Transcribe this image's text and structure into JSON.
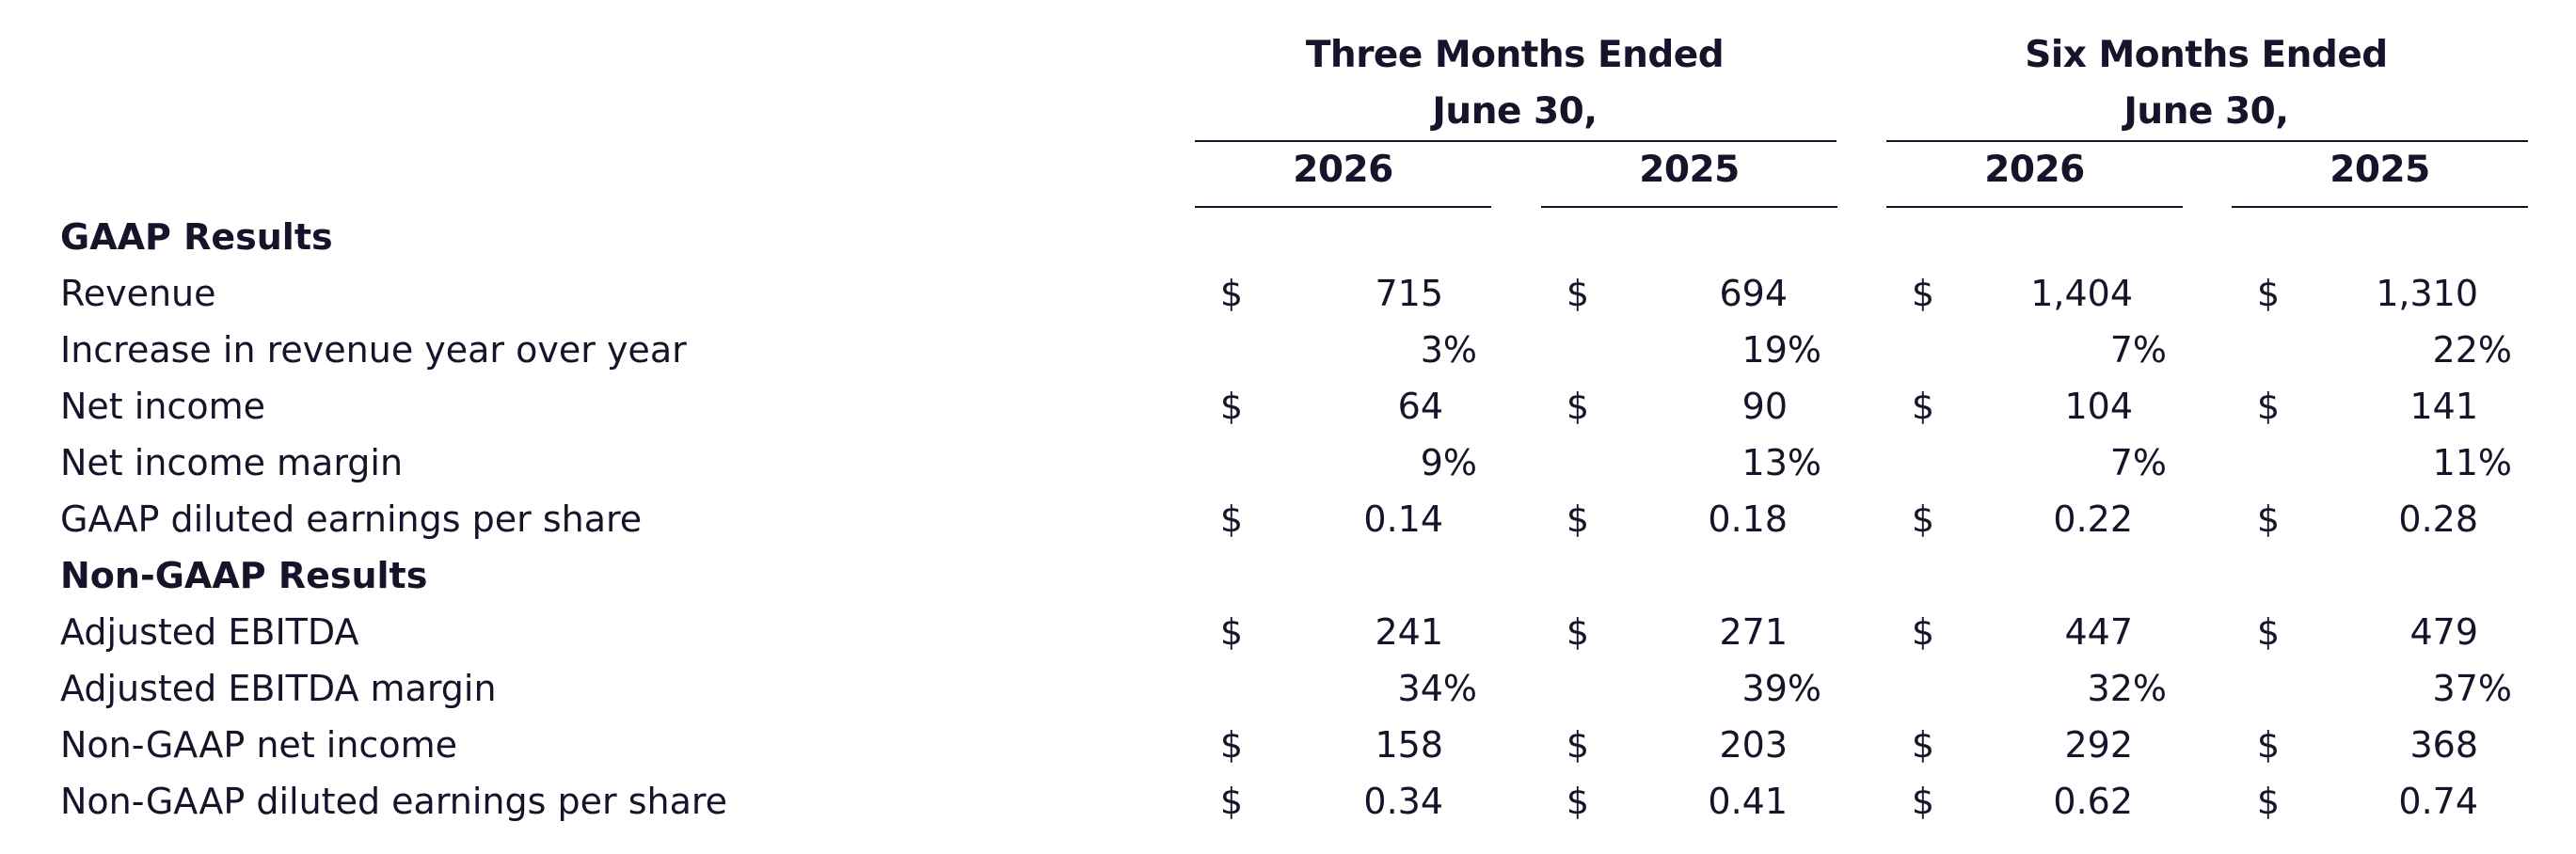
{
  "header": {
    "three_months_line1": "Three Months Ended",
    "three_months_line2": "June 30,",
    "six_months_line1": "Six Months Ended",
    "six_months_line2": "June 30,",
    "years": [
      "2026",
      "2025",
      "2026",
      "2025"
    ]
  },
  "sections": {
    "gaap": "GAAP Results",
    "non_gaap": "Non-GAAP Results"
  },
  "rows": [
    {
      "label": "Revenue",
      "cur": [
        "$",
        "$",
        "$",
        "$"
      ],
      "values": [
        "715",
        "694",
        "1,404",
        "1,310"
      ]
    },
    {
      "label": "Increase in revenue year over year",
      "cur": [
        "",
        "",
        "",
        ""
      ],
      "values": [
        "3%",
        "19%",
        "7%",
        "22%"
      ]
    },
    {
      "label": "Net income",
      "cur": [
        "$",
        "$",
        "$",
        "$"
      ],
      "values": [
        "64",
        "90",
        "104",
        "141"
      ]
    },
    {
      "label": "Net income margin",
      "cur": [
        "",
        "",
        "",
        ""
      ],
      "values": [
        "9%",
        "13%",
        "7%",
        "11%"
      ]
    },
    {
      "label": "GAAP diluted earnings per share",
      "cur": [
        "$",
        "$",
        "$",
        "$"
      ],
      "values": [
        "0.14",
        "0.18",
        "0.22",
        "0.28"
      ]
    },
    {
      "label": "Adjusted EBITDA",
      "cur": [
        "$",
        "$",
        "$",
        "$"
      ],
      "values": [
        "241",
        "271",
        "447",
        "479"
      ]
    },
    {
      "label": "Adjusted EBITDA margin",
      "cur": [
        "",
        "",
        "",
        ""
      ],
      "values": [
        "34%",
        "39%",
        "32%",
        "37%"
      ]
    },
    {
      "label": "Non-GAAP net income",
      "cur": [
        "$",
        "$",
        "$",
        "$"
      ],
      "values": [
        "158",
        "203",
        "292",
        "368"
      ]
    },
    {
      "label": "Non-GAAP diluted earnings per share",
      "cur": [
        "$",
        "$",
        "$",
        "$"
      ],
      "values": [
        "0.34",
        "0.41",
        "0.62",
        "0.74"
      ]
    }
  ]
}
